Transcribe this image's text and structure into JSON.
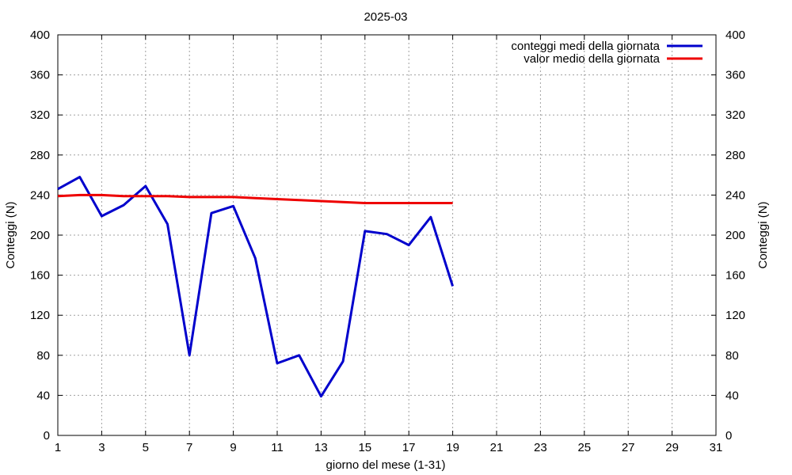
{
  "chart_data": {
    "type": "line",
    "title": "2025-03",
    "xlabel": "giorno del mese (1-31)",
    "ylabel": "Conteggi (N)",
    "y2label": "Conteggi (N)",
    "xlim": [
      1,
      31
    ],
    "ylim": [
      0,
      400
    ],
    "xticks": [
      1,
      3,
      5,
      7,
      9,
      11,
      13,
      15,
      17,
      19,
      21,
      23,
      25,
      27,
      29,
      31
    ],
    "yticks": [
      0,
      40,
      80,
      120,
      160,
      200,
      240,
      280,
      320,
      360,
      400
    ],
    "grid": true,
    "legend_position": "top-right",
    "series": [
      {
        "name": "conteggi medi della giornata",
        "color": "#0000cc",
        "x": [
          1,
          2,
          3,
          4,
          5,
          6,
          7,
          8,
          9,
          10,
          11,
          12,
          13,
          14,
          15,
          16,
          17,
          18,
          19
        ],
        "y": [
          246,
          258,
          219,
          230,
          249,
          211,
          80,
          222,
          229,
          177,
          72,
          80,
          39,
          74,
          204,
          201,
          190,
          218,
          149
        ]
      },
      {
        "name": "valor medio della giornata",
        "color": "#ee0000",
        "x": [
          1,
          2,
          3,
          4,
          5,
          6,
          7,
          8,
          9,
          10,
          11,
          12,
          13,
          14,
          15,
          16,
          17,
          18,
          19
        ],
        "y": [
          239,
          240,
          240,
          239,
          239,
          239,
          238,
          238,
          238,
          237,
          236,
          235,
          234,
          233,
          232,
          232,
          232,
          232,
          232
        ]
      }
    ]
  }
}
